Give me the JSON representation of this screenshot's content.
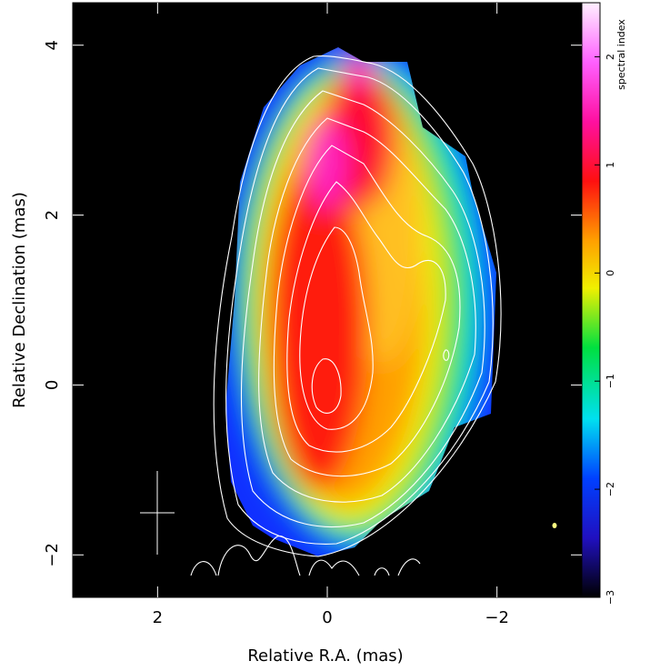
{
  "chart_data": {
    "type": "image",
    "x_label": "Relative R.A. (mas)",
    "y_label": "Relative Declination (mas)",
    "xlim": [
      3,
      -3
    ],
    "ylim": [
      -2.5,
      4.5
    ],
    "xticks": [
      2,
      0,
      {
        "value": -2,
        "label": "−2"
      }
    ],
    "yticks": [
      {
        "value": -2,
        "label": "−2"
      },
      0,
      2,
      4
    ],
    "colorbar": {
      "label": "spectral index",
      "lim": [
        -3,
        2.5
      ],
      "ticks": [
        {
          "value": -3,
          "label": "−3"
        },
        {
          "value": -2,
          "label": "−2"
        },
        {
          "value": -1,
          "label": "−1"
        },
        0,
        1,
        2
      ]
    }
  }
}
